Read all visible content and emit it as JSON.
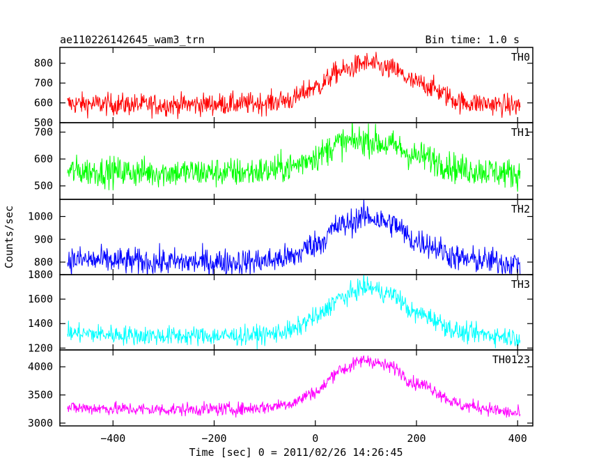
{
  "chart_data": {
    "type": "line",
    "title": "ae110226142645_wam3_trn",
    "subtitle": "Bin time: 1.0 s",
    "xlabel": "Time [sec] 0 = 2011/02/26 14:26:45",
    "ylabel": "Counts/sec",
    "xlim": [
      -505,
      430
    ],
    "x_ticks": [
      -400,
      -200,
      0,
      200,
      400
    ],
    "x_tick_labels": [
      "−400",
      "−200",
      "0",
      "200",
      "400"
    ],
    "panels": [
      {
        "name": "TH0",
        "color": "#ff0000",
        "ylim": [
          500,
          880
        ],
        "y_ticks": [
          500,
          600,
          700,
          800
        ],
        "curve": {
          "x": [
            -490,
            -300,
            -150,
            -100,
            -50,
            0,
            50,
            100,
            150,
            200,
            300,
            405
          ],
          "y": [
            595,
            590,
            595,
            600,
            615,
            680,
            760,
            800,
            770,
            700,
            600,
            585
          ]
        },
        "noise": 28
      },
      {
        "name": "TH1",
        "color": "#00ff00",
        "ylim": [
          450,
          735
        ],
        "y_ticks": [
          500,
          600,
          700
        ],
        "curve": {
          "x": [
            -490,
            -300,
            -150,
            -100,
            -50,
            0,
            50,
            100,
            150,
            200,
            300,
            405
          ],
          "y": [
            555,
            550,
            550,
            555,
            570,
            610,
            660,
            670,
            650,
            610,
            560,
            545
          ]
        },
        "noise": 28
      },
      {
        "name": "TH2",
        "color": "#0000ff",
        "ylim": [
          745,
          1075
        ],
        "y_ticks": [
          800,
          900,
          1000
        ],
        "curve": {
          "x": [
            -490,
            -300,
            -150,
            -100,
            -50,
            0,
            50,
            100,
            150,
            200,
            300,
            405
          ],
          "y": [
            810,
            800,
            800,
            805,
            820,
            880,
            960,
            1000,
            970,
            890,
            810,
            795
          ]
        },
        "noise": 30
      },
      {
        "name": "TH3",
        "color": "#00ffff",
        "ylim": [
          1185,
          1800
        ],
        "y_ticks": [
          1200,
          1400,
          1600,
          1800
        ],
        "curve": {
          "x": [
            -490,
            -300,
            -150,
            -100,
            -50,
            0,
            50,
            100,
            150,
            200,
            300,
            405
          ],
          "y": [
            1320,
            1300,
            1300,
            1310,
            1340,
            1450,
            1610,
            1700,
            1640,
            1480,
            1320,
            1290
          ]
        },
        "noise": 40
      },
      {
        "name": "TH0123",
        "color": "#ff00ff",
        "ylim": [
          2950,
          4300
        ],
        "y_ticks": [
          3000,
          3500,
          4000
        ],
        "curve": {
          "x": [
            -490,
            -300,
            -150,
            -100,
            -50,
            0,
            50,
            100,
            150,
            200,
            300,
            405
          ],
          "y": [
            3270,
            3240,
            3250,
            3280,
            3350,
            3550,
            3950,
            4120,
            4000,
            3700,
            3300,
            3170
          ]
        },
        "noise": 60
      }
    ],
    "grid": false,
    "legend": "none"
  }
}
